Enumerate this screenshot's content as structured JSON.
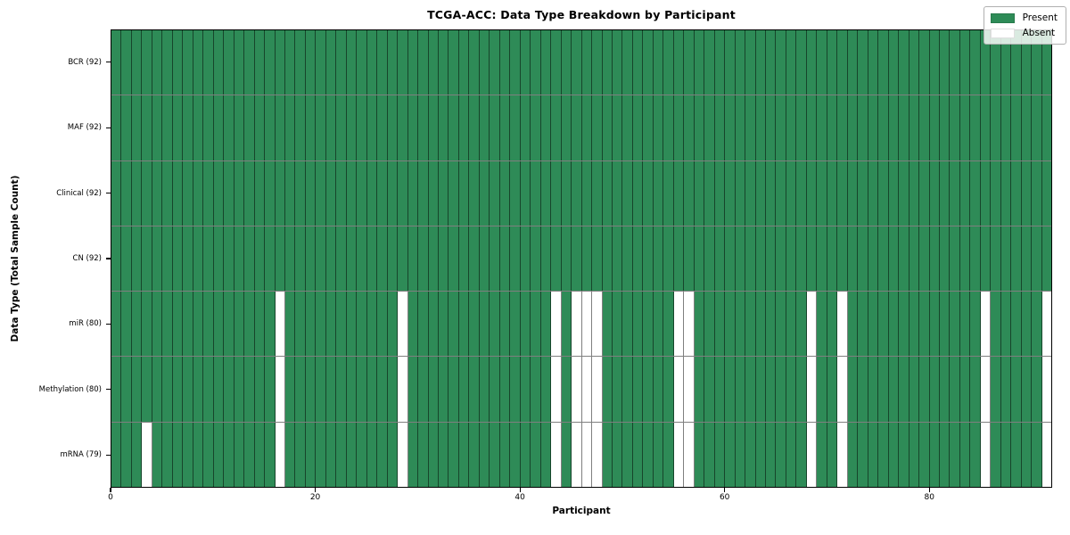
{
  "title": "TCGA-ACC: Data Type Breakdown by Participant",
  "x_axis": {
    "label": "Participant",
    "tick_labels": [
      "0",
      "20",
      "40",
      "60",
      "80"
    ],
    "tick_values": [
      0,
      20,
      40,
      60,
      80
    ],
    "range": [
      0,
      92
    ]
  },
  "y_axis": {
    "label": "Data Type (Total Sample Count)"
  },
  "legend": {
    "items": [
      {
        "label": "Present",
        "color": "#2e8b57"
      },
      {
        "label": "Absent",
        "color": "#ffffff"
      }
    ],
    "position": "upper right"
  },
  "colors": {
    "present": "#2e8b57",
    "absent": "#ffffff",
    "cell_border": "rgba(0,0,0,0.5)",
    "spine": "#000000",
    "legend_bg": "rgba(255,255,255,0.82)",
    "legend_border": "#b0b0b0"
  },
  "chart_data": {
    "type": "heatmap",
    "title": "TCGA-ACC: Data Type Breakdown by Participant",
    "xlabel": "Participant",
    "ylabel": "Data Type (Total Sample Count)",
    "legend_position": "upper right",
    "grid": true,
    "n_participants": 92,
    "x_range": [
      0,
      92
    ],
    "cell_states": [
      "present",
      "absent"
    ],
    "rows": [
      {
        "label": "BCR (92)",
        "data_type": "BCR",
        "present_count": 92,
        "absent_participants": []
      },
      {
        "label": "MAF (92)",
        "data_type": "MAF",
        "present_count": 92,
        "absent_participants": []
      },
      {
        "label": "Clinical (92)",
        "data_type": "Clinical",
        "present_count": 92,
        "absent_participants": []
      },
      {
        "label": "CN (92)",
        "data_type": "CN",
        "present_count": 92,
        "absent_participants": []
      },
      {
        "label": "miR (80)",
        "data_type": "miR",
        "present_count": 80,
        "absent_participants": [
          16,
          28,
          43,
          45,
          46,
          47,
          55,
          56,
          68,
          71,
          85,
          91
        ]
      },
      {
        "label": "Methylation (80)",
        "data_type": "Methylation",
        "present_count": 80,
        "absent_participants": [
          16,
          28,
          43,
          45,
          46,
          47,
          55,
          56,
          68,
          71,
          85,
          91
        ]
      },
      {
        "label": "mRNA (79)",
        "data_type": "mRNA",
        "present_count": 79,
        "absent_participants": [
          3,
          16,
          28,
          43,
          45,
          46,
          47,
          55,
          56,
          68,
          71,
          85,
          91
        ]
      }
    ]
  }
}
